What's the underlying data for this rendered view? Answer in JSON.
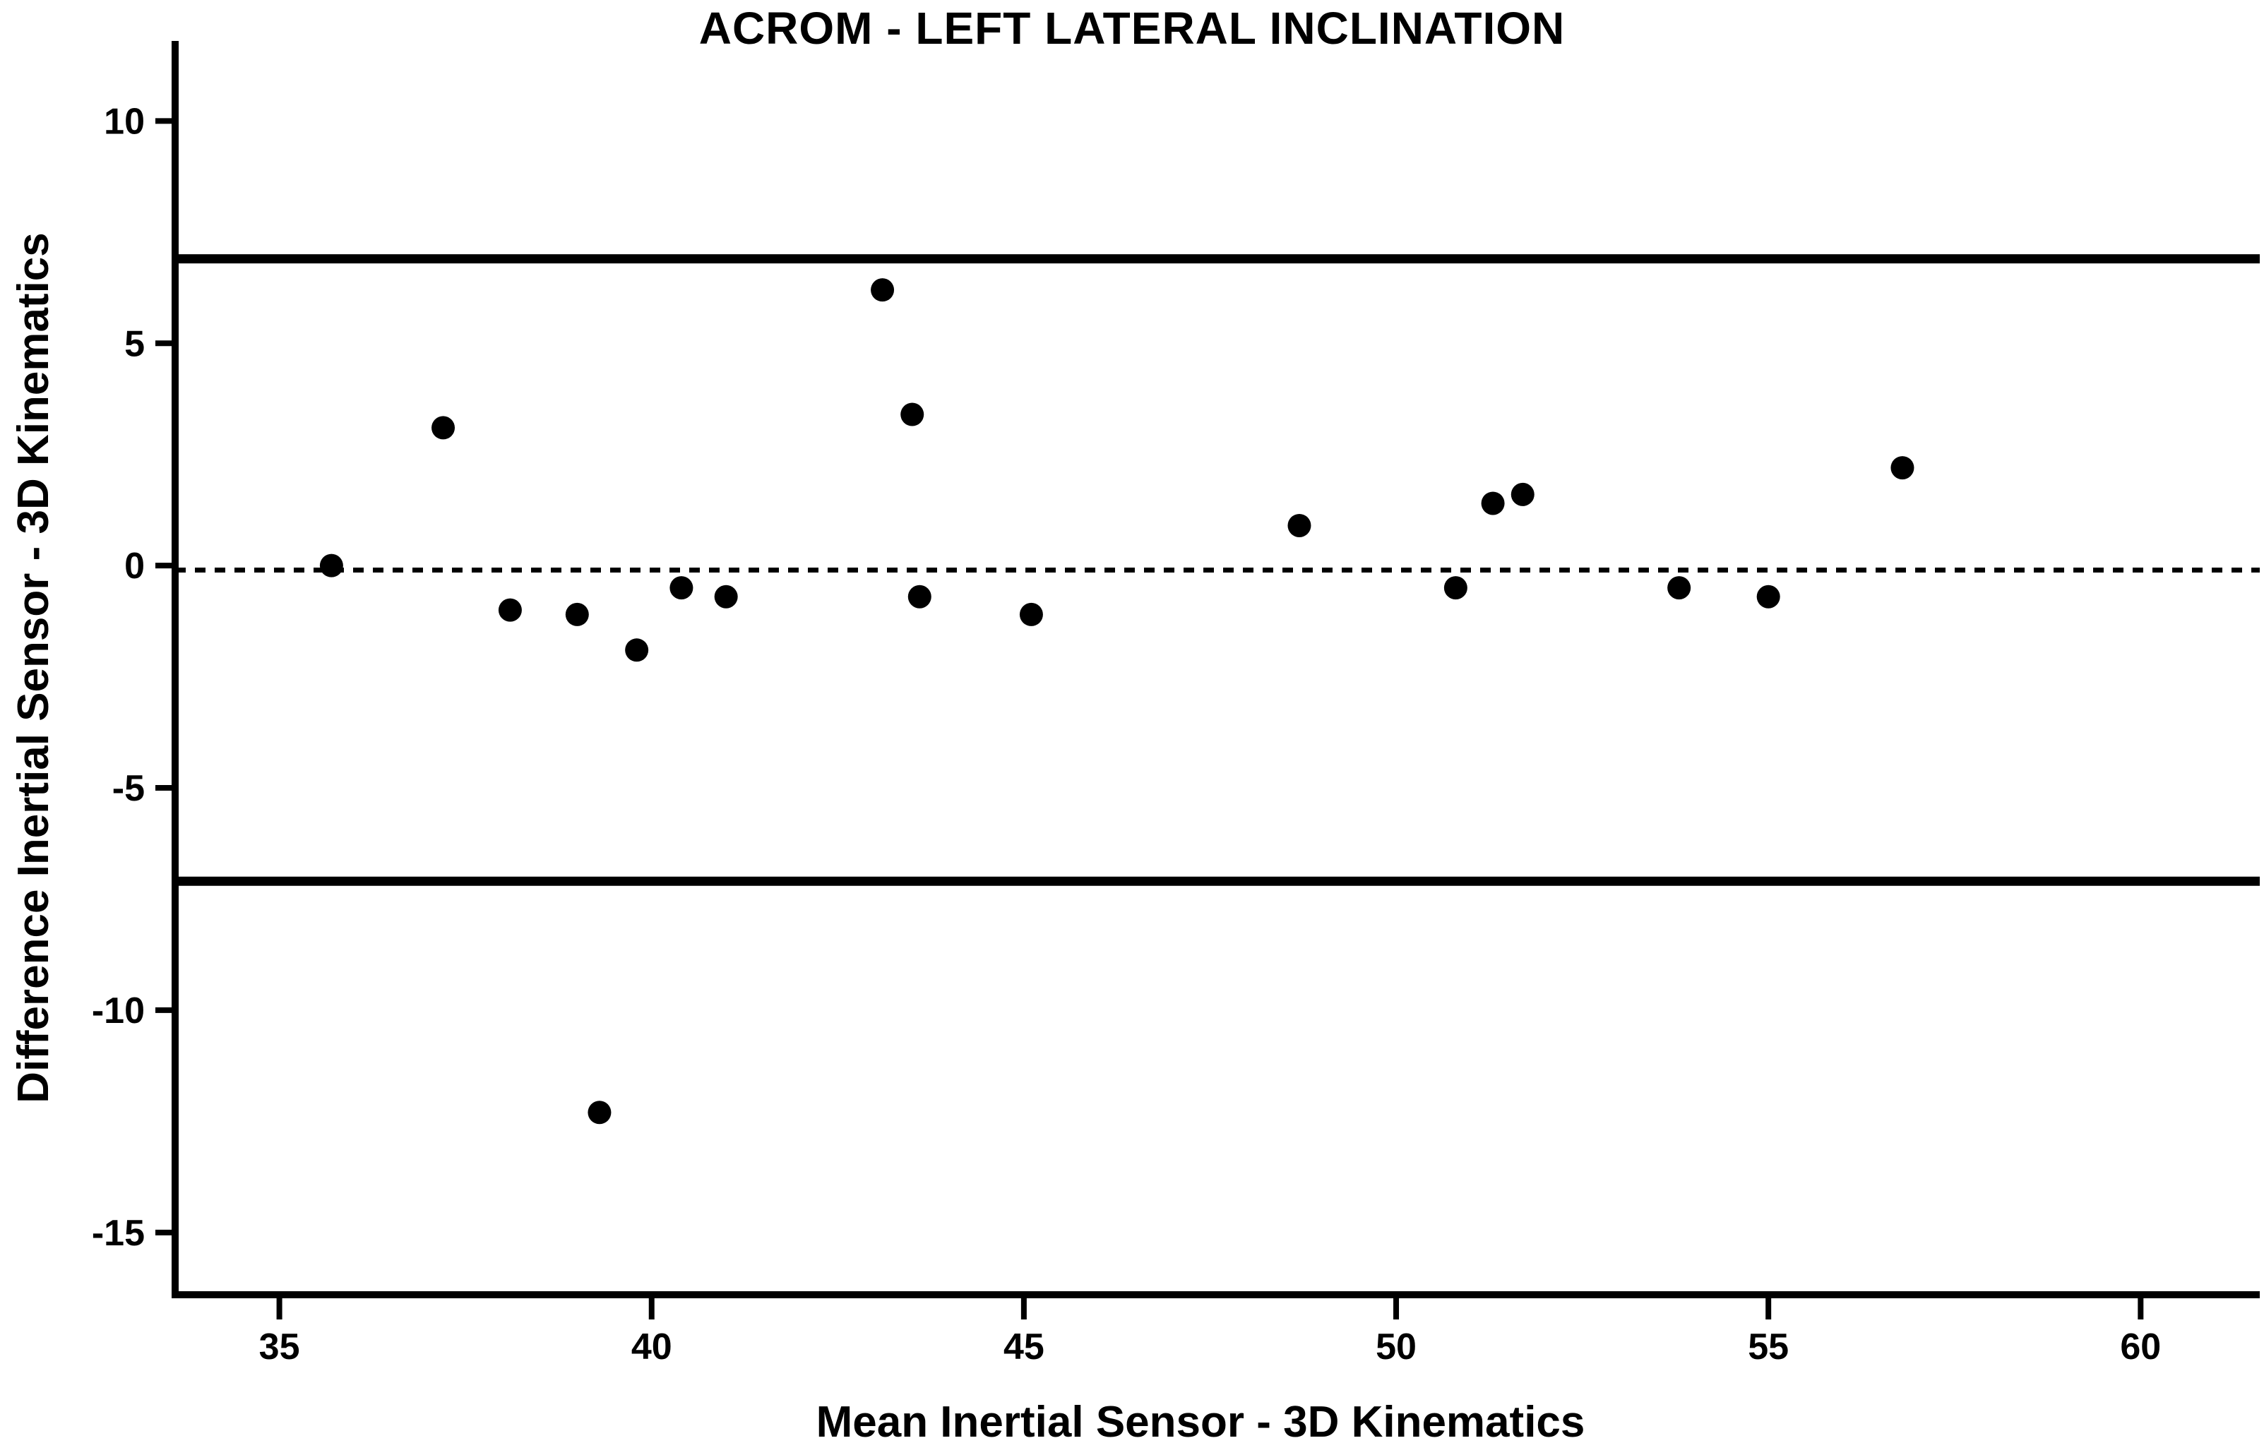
{
  "chart_data": {
    "type": "scatter",
    "title": "ACROM - LEFT LATERAL INCLINATION",
    "xlabel": "Mean Inertial Sensor - 3D Kinematics",
    "ylabel": "Difference Inertial Sensor - 3D Kinematics",
    "xlim": [
      33.6,
      61.6
    ],
    "ylim": [
      -16.4,
      11.8
    ],
    "x_ticks": [
      35,
      40,
      45,
      50,
      55,
      60
    ],
    "y_ticks": [
      10,
      5,
      0,
      -5,
      -10,
      -15
    ],
    "grid": false,
    "legend": "none",
    "marker": "filled-circle",
    "point_color": "#000000",
    "line_color": "#000000",
    "background_color": "#ffffff",
    "reference_lines": {
      "upper_loa": 6.9,
      "mean": -0.1,
      "lower_loa": -7.1,
      "upper_style": "solid",
      "mean_style": "dashed",
      "lower_style": "solid"
    },
    "points": [
      [
        35.7,
        0.0
      ],
      [
        37.2,
        3.1
      ],
      [
        38.1,
        -1.0
      ],
      [
        39.0,
        -1.1
      ],
      [
        39.3,
        -12.3
      ],
      [
        39.8,
        -1.9
      ],
      [
        40.4,
        -0.5
      ],
      [
        41.0,
        -0.7
      ],
      [
        43.1,
        6.2
      ],
      [
        43.5,
        3.4
      ],
      [
        43.6,
        -0.7
      ],
      [
        45.1,
        -1.1
      ],
      [
        48.7,
        0.9
      ],
      [
        50.8,
        -0.5
      ],
      [
        51.3,
        1.4
      ],
      [
        51.7,
        1.6
      ],
      [
        53.8,
        -0.5
      ],
      [
        55.0,
        -0.7
      ],
      [
        56.8,
        2.2
      ]
    ]
  }
}
